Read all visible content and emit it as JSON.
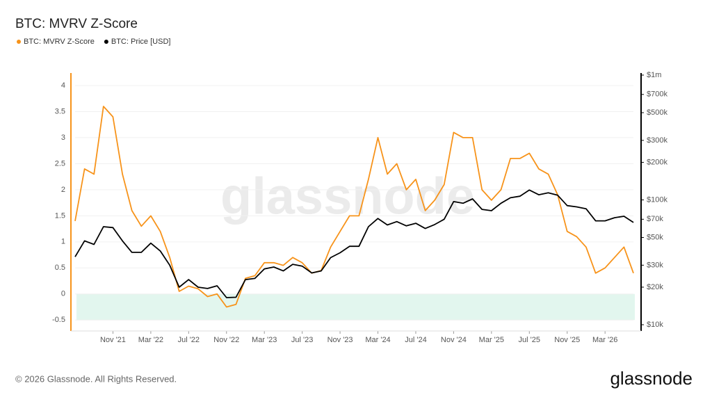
{
  "chart_data": {
    "type": "line",
    "title": "BTC: MVRV Z-Score",
    "watermark": "glassnode",
    "footer": "© 2026 Glassnode. All Rights Reserved.",
    "logo": "glassnode",
    "x": [
      "2021-07",
      "2021-08",
      "2021-09",
      "2021-10",
      "2021-11",
      "2021-12",
      "2022-01",
      "2022-02",
      "2022-03",
      "2022-04",
      "2022-05",
      "2022-06",
      "2022-07",
      "2022-08",
      "2022-09",
      "2022-10",
      "2022-11",
      "2022-12",
      "2023-01",
      "2023-02",
      "2023-03",
      "2023-04",
      "2023-05",
      "2023-06",
      "2023-07",
      "2023-08",
      "2023-09",
      "2023-10",
      "2023-11",
      "2023-12",
      "2024-01",
      "2024-02",
      "2024-03",
      "2024-04",
      "2024-05",
      "2024-06",
      "2024-07",
      "2024-08",
      "2024-09",
      "2024-10",
      "2024-11",
      "2024-12",
      "2025-01",
      "2025-02",
      "2025-03",
      "2025-04",
      "2025-05",
      "2025-06",
      "2025-07",
      "2025-08",
      "2025-09",
      "2025-10",
      "2025-11",
      "2025-12",
      "2026-01",
      "2026-02",
      "2026-03",
      "2026-04",
      "2026-05",
      "2026-06"
    ],
    "xlim": [
      "2021-07",
      "2026-06"
    ],
    "xticks": [
      {
        "value": "2021-11",
        "label": "Nov '21"
      },
      {
        "value": "2022-03",
        "label": "Mar '22"
      },
      {
        "value": "2022-07",
        "label": "Jul '22"
      },
      {
        "value": "2022-11",
        "label": "Nov '22"
      },
      {
        "value": "2023-03",
        "label": "Mar '23"
      },
      {
        "value": "2023-07",
        "label": "Jul '23"
      },
      {
        "value": "2023-11",
        "label": "Nov '23"
      },
      {
        "value": "2024-03",
        "label": "Mar '24"
      },
      {
        "value": "2024-07",
        "label": "Jul '24"
      },
      {
        "value": "2024-11",
        "label": "Nov '24"
      },
      {
        "value": "2025-03",
        "label": "Mar '25"
      },
      {
        "value": "2025-07",
        "label": "Jul '25"
      },
      {
        "value": "2025-11",
        "label": "Nov '25"
      },
      {
        "value": "2026-03",
        "label": "Mar '26"
      }
    ],
    "ylim": [
      -0.59,
      4.2
    ],
    "yticks": [
      -0.5,
      0,
      0.5,
      1,
      1.5,
      2,
      2.5,
      3,
      3.5,
      4
    ],
    "y2lim": [
      10000,
      1000000
    ],
    "y2log": true,
    "y2ticks": [
      {
        "value": 10000,
        "label": "$10k"
      },
      {
        "value": 20000,
        "label": "$20k"
      },
      {
        "value": 30000,
        "label": "$30k"
      },
      {
        "value": 50000,
        "label": "$50k"
      },
      {
        "value": 70000,
        "label": "$70k"
      },
      {
        "value": 100000,
        "label": "$100k"
      },
      {
        "value": 200000,
        "label": "$200k"
      },
      {
        "value": 300000,
        "label": "$300k"
      },
      {
        "value": 500000,
        "label": "$500k"
      },
      {
        "value": 700000,
        "label": "$700k"
      },
      {
        "value": 1000000,
        "label": "$1m"
      }
    ],
    "grid": true,
    "zones": [
      {
        "from": -0.5,
        "to": 0,
        "color": "#e2f6ee"
      }
    ],
    "series": [
      {
        "name": "BTC: MVRV Z-Score",
        "color": "#f7931a",
        "values": [
          1.4,
          2.4,
          2.3,
          3.6,
          3.4,
          2.3,
          1.6,
          1.3,
          1.5,
          1.2,
          0.7,
          0.05,
          0.15,
          0.1,
          -0.05,
          0.0,
          -0.25,
          -0.2,
          0.3,
          0.35,
          0.6,
          0.6,
          0.55,
          0.7,
          0.6,
          0.4,
          0.45,
          0.9,
          1.2,
          1.5,
          1.5,
          2.2,
          3.0,
          2.3,
          2.5,
          2.0,
          2.2,
          1.6,
          1.8,
          2.1,
          3.1,
          3.0,
          3.0,
          2.0,
          1.8,
          2.0,
          2.6,
          2.6,
          2.7,
          2.4,
          2.3,
          1.9,
          1.2,
          1.1,
          0.9,
          0.4,
          0.5,
          0.7,
          0.9,
          0.4
        ]
      },
      {
        "name": "BTC: Price [USD]",
        "color": "#000000",
        "axis": "y2",
        "values": [
          35000,
          47000,
          44000,
          61000,
          60000,
          47000,
          38000,
          38000,
          45000,
          39000,
          30000,
          20000,
          23000,
          20000,
          19500,
          20500,
          16500,
          16600,
          23000,
          23500,
          28000,
          29000,
          27000,
          30500,
          29500,
          26000,
          27000,
          34500,
          37700,
          42500,
          42500,
          61000,
          71000,
          63000,
          67000,
          62000,
          65000,
          59000,
          63500,
          70000,
          97000,
          94000,
          102000,
          84000,
          82000,
          94000,
          104000,
          107000,
          120000,
          110000,
          114000,
          109000,
          90000,
          88000,
          85000,
          68000,
          68000,
          72000,
          74000,
          66000
        ]
      }
    ]
  }
}
